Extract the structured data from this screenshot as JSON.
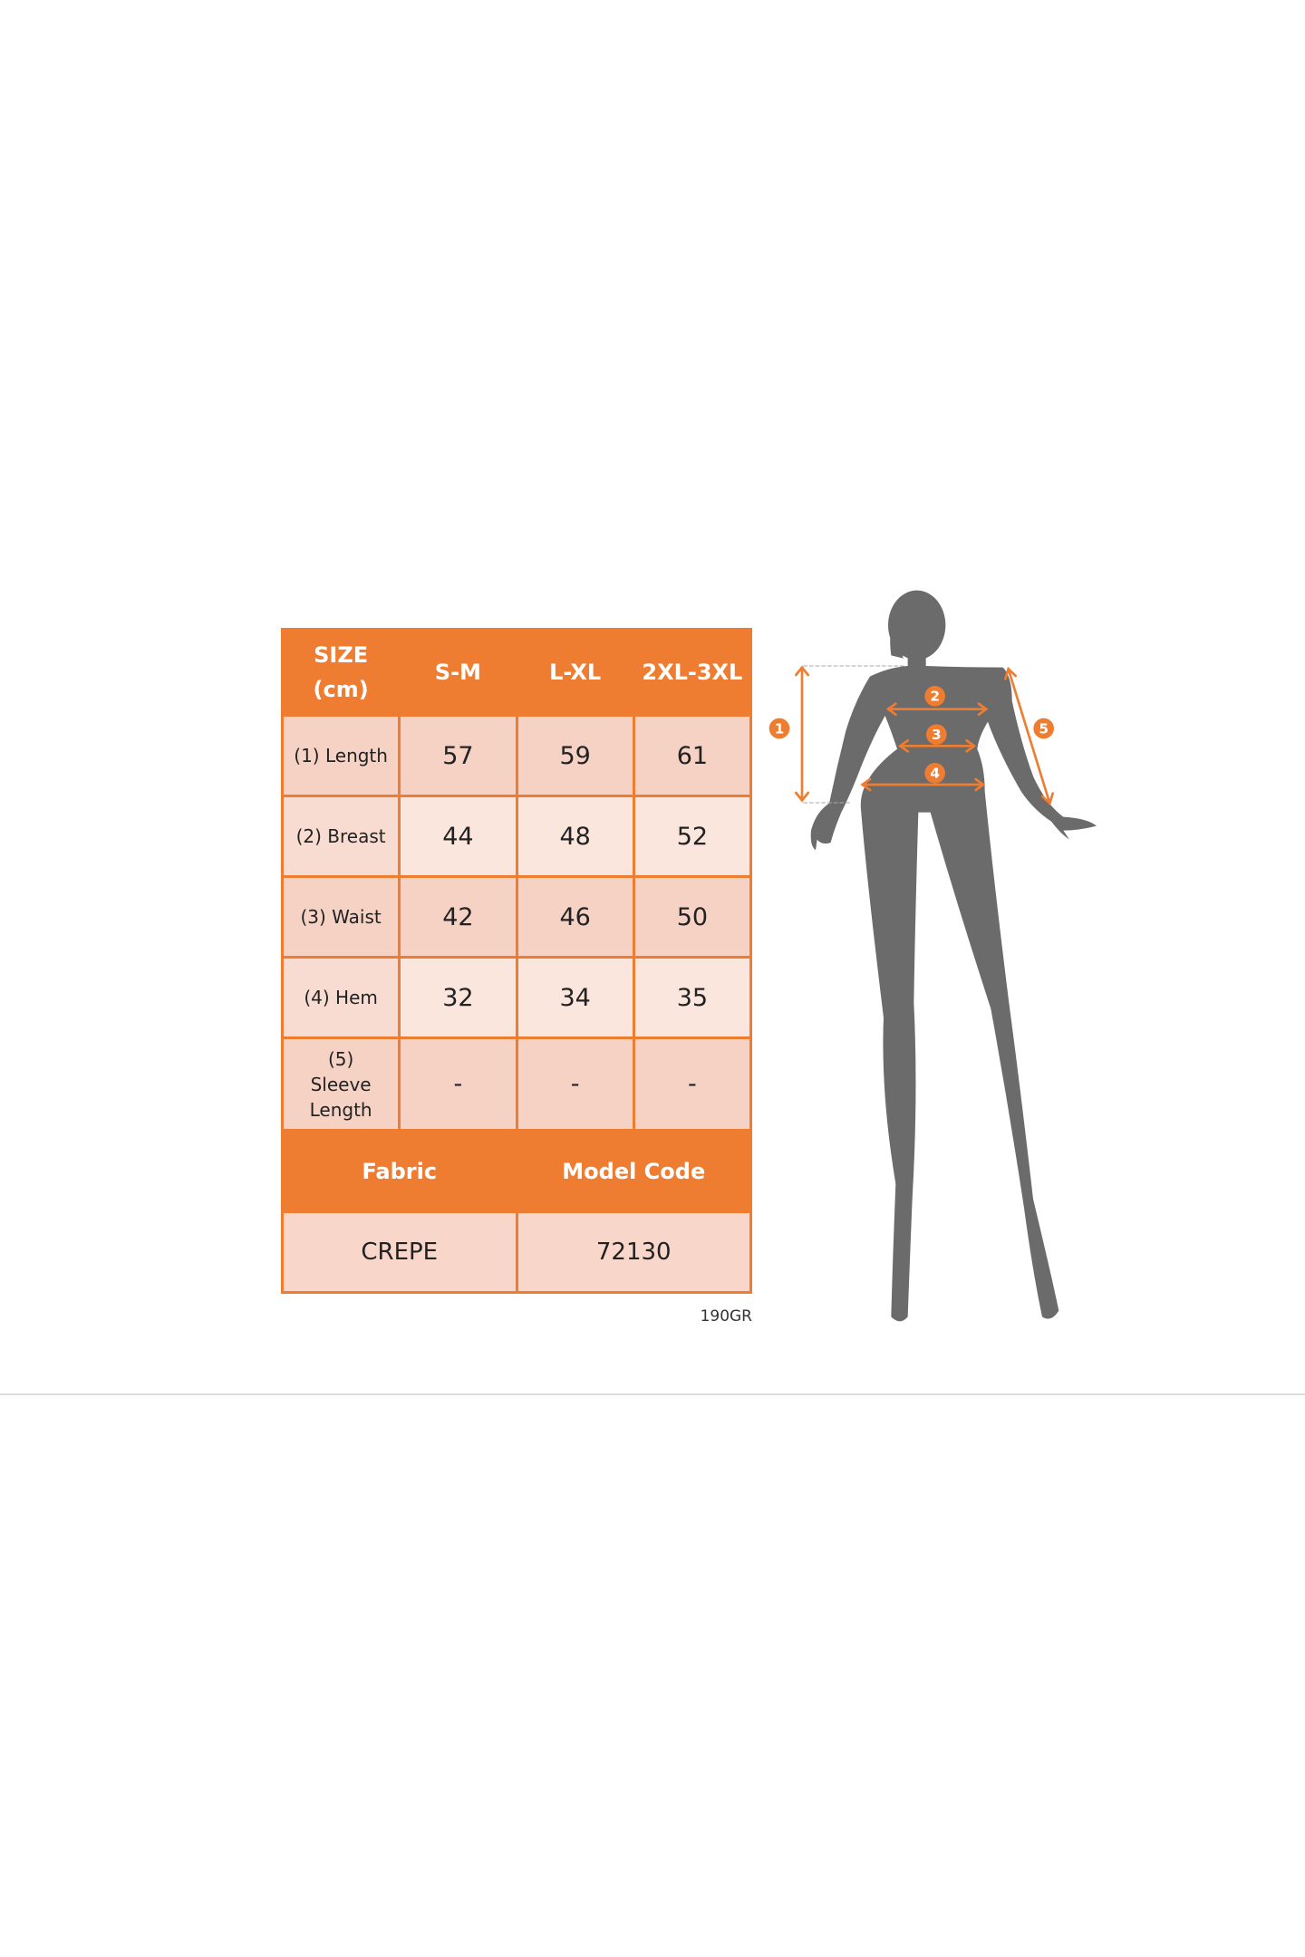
{
  "size_chart": {
    "header": [
      "SIZE (cm)",
      "S-M",
      "L-XL",
      "2XL-3XL"
    ],
    "rows": [
      {
        "label": "(1) Length",
        "values": [
          "57",
          "59",
          "61"
        ]
      },
      {
        "label": "(2) Breast",
        "values": [
          "44",
          "48",
          "52"
        ]
      },
      {
        "label": "(3) Waist",
        "values": [
          "42",
          "46",
          "50"
        ]
      },
      {
        "label": "(4) Hem",
        "values": [
          "32",
          "34",
          "35"
        ]
      },
      {
        "label": "(5) Sleeve Length",
        "values": [
          "-",
          "-",
          "-"
        ]
      }
    ],
    "fabric_label": "Fabric",
    "model_code_label": "Model Code",
    "fabric_value": "CREPE",
    "model_code_value": "72130",
    "weight": "190GR"
  },
  "figure": {
    "markers": [
      "1",
      "2",
      "3",
      "4",
      "5"
    ],
    "accent_color": "#ee7d31",
    "silhouette_color": "#6b6b6b"
  }
}
